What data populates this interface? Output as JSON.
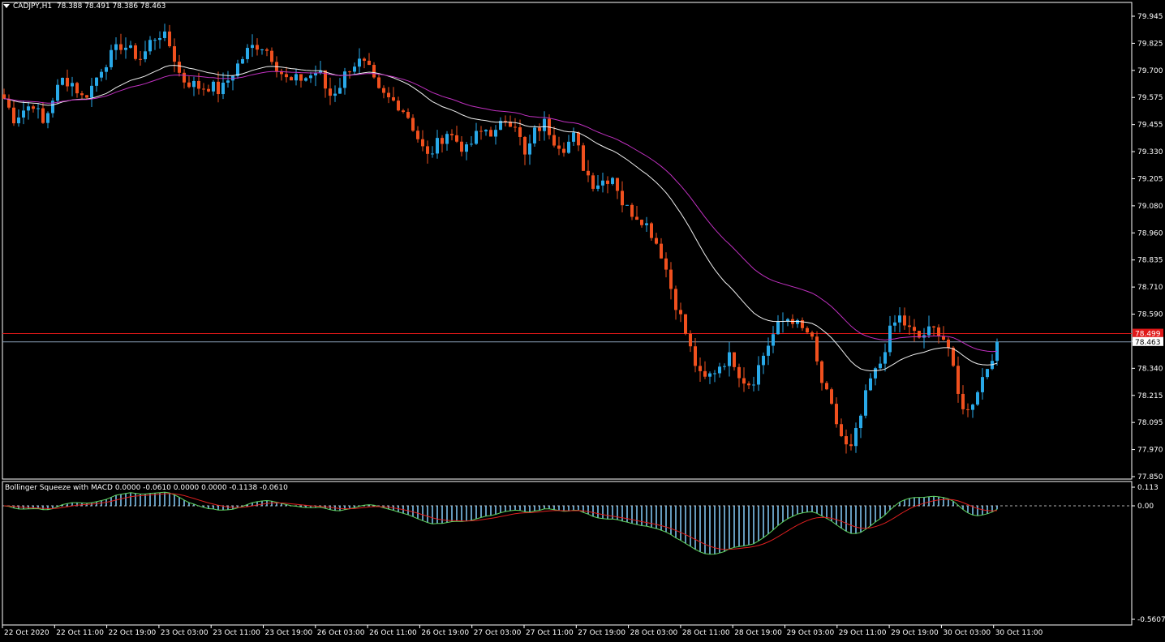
{
  "header": {
    "symbol": "CADJPY,H1",
    "ohlc": "78.388 78.491 78.386 78.463"
  },
  "indicator_header": "Bollinger Squeeze with MACD 0.0000 -0.0610 0.0000 0.0000 -0.1138 -0.0610",
  "price_axis": [
    "79.945",
    "79.825",
    "79.700",
    "79.575",
    "79.455",
    "79.330",
    "79.205",
    "79.080",
    "78.960",
    "78.835",
    "78.710",
    "78.590",
    "78.465",
    "78.340",
    "78.215",
    "78.095",
    "77.970",
    "77.850"
  ],
  "price_labels": {
    "red_line": "78.499",
    "current": "78.463"
  },
  "indicator_axis": {
    "top": "0.113",
    "zero": "0.00",
    "bottom": "-0.5607"
  },
  "time_axis": [
    "22 Oct 2020",
    "22 Oct 11:00",
    "22 Oct 19:00",
    "23 Oct 03:00",
    "23 Oct 11:00",
    "23 Oct 19:00",
    "26 Oct 03:00",
    "26 Oct 11:00",
    "26 Oct 19:00",
    "27 Oct 03:00",
    "27 Oct 11:00",
    "27 Oct 19:00",
    "28 Oct 03:00",
    "28 Oct 11:00",
    "28 Oct 19:00",
    "29 Oct 03:00",
    "29 Oct 11:00",
    "29 Oct 19:00",
    "30 Oct 03:00",
    "30 Oct 11:00"
  ],
  "colors": {
    "bull": "#29a9e8",
    "bear": "#f0501e",
    "ma_white": "#f0f0f0",
    "ma_magenta": "#c030c0",
    "red_line": "#e01818",
    "current_line": "#8aa0b8",
    "hist": "#87cefa",
    "macd_green": "#5fd35f",
    "signal_red": "#e02020"
  },
  "chart_data": {
    "type": "candlestick",
    "symbol": "CADJPY",
    "timeframe": "H1",
    "ylim": [
      77.85,
      79.99
    ],
    "close_path": [
      79.57,
      79.48,
      79.52,
      79.55,
      79.45,
      79.58,
      79.66,
      79.64,
      79.57,
      79.63,
      79.72,
      79.77,
      79.82,
      79.78,
      79.75,
      79.84,
      79.87,
      79.8,
      79.66,
      79.64,
      79.62,
      79.63,
      79.6,
      79.67,
      79.74,
      79.8,
      79.82,
      79.78,
      79.7,
      79.64,
      79.66,
      79.67,
      79.7,
      79.58,
      79.62,
      79.71,
      79.74,
      79.71,
      79.6,
      79.57,
      79.55,
      79.5,
      79.4,
      79.3,
      79.36,
      79.42,
      79.38,
      79.33,
      79.4,
      79.43,
      79.41,
      79.48,
      79.46,
      79.3,
      79.42,
      79.46,
      79.38,
      79.35,
      79.4,
      79.25,
      79.18,
      79.2,
      79.22,
      79.08,
      79.05,
      79.02,
      78.95,
      78.85,
      78.68,
      78.55,
      78.4,
      78.28,
      78.32,
      78.37,
      78.4,
      78.3,
      78.27,
      78.38,
      78.48,
      78.55,
      78.58,
      78.52,
      78.5,
      78.3,
      78.18,
      78.05,
      77.95,
      78.1,
      78.28,
      78.35,
      78.5,
      78.58,
      78.52,
      78.48,
      78.51,
      78.52,
      78.45,
      78.22,
      78.14,
      78.25,
      78.35,
      78.46
    ]
  }
}
